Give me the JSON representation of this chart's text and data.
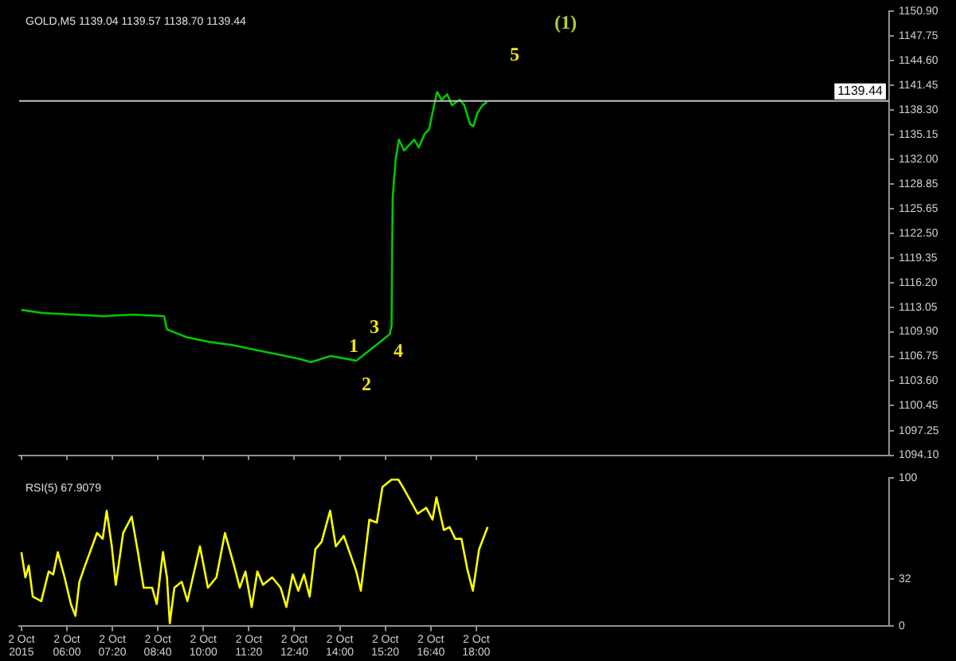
{
  "chart_data": [
    {
      "type": "line",
      "title": "GOLD,M5 1139.04 1139.57 1138.70 1139.44",
      "x": [
        "2015-10-02T04:40",
        "2015-10-02T05:17",
        "2015-10-02T06:11",
        "2015-10-02T07:04",
        "2015-10-02T07:57",
        "2015-10-02T08:51",
        "2015-10-02T08:56",
        "2015-10-02T09:31",
        "2015-10-02T10:11",
        "2015-10-02T10:51",
        "2015-10-02T11:31",
        "2015-10-02T12:11",
        "2015-10-02T12:51",
        "2015-10-02T13:09",
        "2015-10-02T13:44",
        "2015-10-02T14:29",
        "2015-10-02T15:04",
        "2015-10-02T15:28",
        "2015-10-02T15:31",
        "2015-10-02T15:33",
        "2015-10-02T15:38",
        "2015-10-02T15:44",
        "2015-10-02T15:53",
        "2015-10-02T16:02",
        "2015-10-02T16:11",
        "2015-10-02T16:19",
        "2015-10-02T16:29",
        "2015-10-02T16:37",
        "2015-10-02T16:43",
        "2015-10-02T16:51",
        "2015-10-02T16:59",
        "2015-10-02T17:09",
        "2015-10-02T17:17",
        "2015-10-02T17:31",
        "2015-10-02T17:39",
        "2015-10-02T17:49",
        "2015-10-02T17:55",
        "2015-10-02T18:02",
        "2015-10-02T18:11",
        "2015-10-02T18:19"
      ],
      "series": [
        {
          "color": "#00c800",
          "values": [
            1112.7,
            1112.3,
            1112.1,
            1111.9,
            1112.1,
            1111.9,
            1110.2,
            1109.2,
            1108.6,
            1108.2,
            1107.6,
            1107.0,
            1106.4,
            1106.0,
            1106.8,
            1106.2,
            1108.2,
            1109.6,
            1110.7,
            1127.0,
            1131.8,
            1134.5,
            1133.1,
            1133.8,
            1134.5,
            1133.5,
            1135.2,
            1135.8,
            1137.9,
            1140.6,
            1139.6,
            1140.3,
            1138.9,
            1139.6,
            1138.9,
            1136.5,
            1136.2,
            1137.9,
            1138.9,
            1139.3
          ]
        }
      ],
      "xlim": [
        "2015-10-02T04:36",
        "2015-10-03T06:06"
      ],
      "xticks": [
        {
          "value": "2015-10-02T04:40",
          "label": null
        },
        {
          "value": "2015-10-02T06:00",
          "label": null
        },
        {
          "value": "2015-10-02T07:20",
          "label": null
        },
        {
          "value": "2015-10-02T08:40",
          "label": null
        },
        {
          "value": "2015-10-02T10:00",
          "label": null
        },
        {
          "value": "2015-10-02T11:20",
          "label": null
        },
        {
          "value": "2015-10-02T12:40",
          "label": null
        },
        {
          "value": "2015-10-02T14:00",
          "label": null
        },
        {
          "value": "2015-10-02T15:20",
          "label": null
        },
        {
          "value": "2015-10-02T16:40",
          "label": null
        },
        {
          "value": "2015-10-02T18:00",
          "label": null
        }
      ],
      "ylim": [
        1094.1,
        1150.9
      ],
      "yticks": [
        {
          "value": 1150.9,
          "label": "1150.90"
        },
        1147.75,
        {
          "value": 1144.6,
          "label": "1144.60"
        },
        1141.45,
        {
          "value": 1138.3,
          "label": "1138.30"
        },
        1135.15,
        {
          "value": 1132,
          "label": "1132.00"
        },
        1128.85,
        1125.65,
        {
          "value": 1122.5,
          "label": "1122.50"
        },
        1119.35,
        {
          "value": 1116.2,
          "label": "1116.20"
        },
        1113.05,
        {
          "value": 1109.9,
          "label": "1109.90"
        },
        1106.75,
        {
          "value": 1103.6,
          "label": "1103.60"
        },
        1100.45,
        1097.25,
        {
          "value": 1094.1,
          "label": "1094.10"
        }
      ],
      "tick_labels": "y",
      "ref_lines": [
        {
          "axis": "y",
          "value": 1139.44,
          "label": "1139.44",
          "color": "#c0c0c0"
        }
      ],
      "annotations": [
        "1",
        "2",
        "3",
        "4",
        "5",
        "(1)"
      ]
    },
    {
      "type": "line",
      "title": "RSI(5) 67.9079",
      "x": [
        "2015-10-02T04:40",
        "2015-10-02T04:47",
        "2015-10-02T04:53",
        "2015-10-02T05:00",
        "2015-10-02T05:15",
        "2015-10-02T05:28",
        "2015-10-02T05:36",
        "2015-10-02T05:44",
        "2015-10-02T05:56",
        "2015-10-02T06:07",
        "2015-10-02T06:15",
        "2015-10-02T06:22",
        "2015-10-02T06:32",
        "2015-10-02T06:53",
        "2015-10-02T07:03",
        "2015-10-02T07:10",
        "2015-10-02T07:19",
        "2015-10-02T07:26",
        "2015-10-02T07:39",
        "2015-10-02T07:54",
        "2015-10-02T08:05",
        "2015-10-02T08:15",
        "2015-10-02T08:30",
        "2015-10-02T08:38",
        "2015-10-02T08:49",
        "2015-10-02T08:56",
        "2015-10-02T09:01",
        "2015-10-02T09:09",
        "2015-10-02T09:22",
        "2015-10-02T09:32",
        "2015-10-02T09:54",
        "2015-10-02T10:08",
        "2015-10-02T10:23",
        "2015-10-02T10:38",
        "2015-10-02T10:54",
        "2015-10-02T11:04",
        "2015-10-02T11:14",
        "2015-10-02T11:25",
        "2015-10-02T11:35",
        "2015-10-02T11:45",
        "2015-10-02T12:01",
        "2015-10-02T12:16",
        "2015-10-02T12:26",
        "2015-10-02T12:37",
        "2015-10-02T12:47",
        "2015-10-02T12:57",
        "2015-10-02T13:07",
        "2015-10-02T13:17",
        "2015-10-02T13:28",
        "2015-10-02T13:43",
        "2015-10-02T13:53",
        "2015-10-02T14:07",
        "2015-10-02T14:19",
        "2015-10-02T14:29",
        "2015-10-02T14:37",
        "2015-10-02T14:52",
        "2015-10-02T15:05",
        "2015-10-02T15:15",
        "2015-10-02T15:31",
        "2015-10-02T15:43",
        "2015-10-02T15:51",
        "2015-10-02T16:07",
        "2015-10-02T16:17",
        "2015-10-02T16:32",
        "2015-10-02T16:43",
        "2015-10-02T16:50",
        "2015-10-02T17:03",
        "2015-10-02T17:13",
        "2015-10-02T17:23",
        "2015-10-02T17:34",
        "2015-10-02T17:44",
        "2015-10-02T17:54",
        "2015-10-02T18:05",
        "2015-10-02T18:20"
      ],
      "series": [
        {
          "color": "#ffff00",
          "values": [
            50,
            33,
            41,
            20,
            17,
            37,
            35,
            50,
            33,
            15,
            7,
            30,
            41,
            63,
            59,
            78,
            54,
            28,
            63,
            74,
            50,
            26,
            26,
            15,
            50,
            33,
            2,
            26,
            30,
            17,
            54,
            26,
            33,
            63,
            41,
            26,
            37,
            13,
            37,
            28,
            33,
            26,
            13,
            35,
            24,
            35,
            20,
            52,
            57,
            78,
            54,
            61,
            48,
            37,
            24,
            72,
            70,
            94,
            99,
            99,
            94,
            83,
            76,
            80,
            72,
            87,
            65,
            67,
            59,
            59,
            39,
            24,
            52,
            67
          ]
        }
      ],
      "xlim": [
        "2015-10-02T04:36",
        "2015-10-03T06:06"
      ],
      "xticks": [
        {
          "value": "2015-10-02T04:40",
          "label": "2 Oct 2015"
        },
        {
          "value": "2015-10-02T06:00",
          "label": "2 Oct 06:00"
        },
        {
          "value": "2015-10-02T07:20",
          "label": "2 Oct 07:20"
        },
        {
          "value": "2015-10-02T08:40",
          "label": "2 Oct 08:40"
        },
        {
          "value": "2015-10-02T10:00",
          "label": "2 Oct 10:00"
        },
        {
          "value": "2015-10-02T11:20",
          "label": "2 Oct 11:20"
        },
        {
          "value": "2015-10-02T12:40",
          "label": "2 Oct 12:40"
        },
        {
          "value": "2015-10-02T14:00",
          "label": "2 Oct 14:00"
        },
        {
          "value": "2015-10-02T15:20",
          "label": "2 Oct 15:20"
        },
        {
          "value": "2015-10-02T16:40",
          "label": "2 Oct 16:40"
        },
        {
          "value": "2015-10-02T18:00",
          "label": "2 Oct 18:00"
        }
      ],
      "ylim": [
        0,
        100
      ],
      "yticks": [
        0,
        32,
        100
      ]
    }
  ]
}
